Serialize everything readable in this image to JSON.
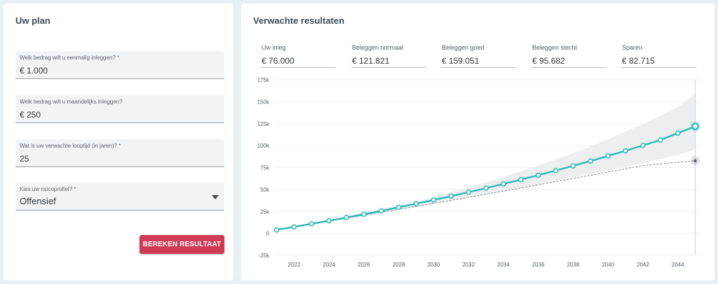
{
  "plan": {
    "title": "Uw plan",
    "fields": [
      {
        "label": "Welk bedrag wilt u eenmalig inleggen? *",
        "value": "€ 1.000"
      },
      {
        "label": "Welk bedrag wilt u maandelijks inleggen?",
        "value": "€ 250"
      },
      {
        "label": "Wat is uw verwachte looptijd (in jaren)? *",
        "value": "25"
      },
      {
        "label": "Kies uw risicoprofiel? *",
        "value": "Offensief"
      }
    ],
    "button_label": "BEREKEN RESULTAAT"
  },
  "results": {
    "title": "Verwachte resultaten",
    "stats": [
      {
        "label": "Uw inleg",
        "value": "€ 76.000"
      },
      {
        "label": "Beleggen normaal",
        "value": "€ 121.821"
      },
      {
        "label": "Beleggen goed",
        "value": "€ 159.051"
      },
      {
        "label": "Beleggen slecht",
        "value": "€ 95.682"
      },
      {
        "label": "Sparen",
        "value": "€ 82.715"
      }
    ]
  },
  "colors": {
    "accent": "#2bb9b4",
    "button": "#d13a55",
    "band": "#ebedef",
    "savings_line": "#8a9095"
  },
  "chart_data": {
    "type": "line",
    "x_ticks": [
      2022,
      2024,
      2026,
      2028,
      2030,
      2032,
      2034,
      2036,
      2038,
      2040,
      2042,
      2044
    ],
    "y_ticks": [
      -25000,
      0,
      25000,
      50000,
      75000,
      100000,
      125000,
      150000,
      175000
    ],
    "y_tick_labels": [
      "-25k",
      "0",
      "25k",
      "50k",
      "75k",
      "100k",
      "125k",
      "150k",
      "175k"
    ],
    "xlim": [
      2020.9,
      2045.3
    ],
    "ylim": [
      -25000,
      175000
    ],
    "grid": true,
    "x": [
      2021,
      2022,
      2023,
      2024,
      2025,
      2026,
      2027,
      2028,
      2029,
      2030,
      2031,
      2032,
      2033,
      2034,
      2035,
      2036,
      2037,
      2038,
      2039,
      2040,
      2041,
      2042,
      2043,
      2044,
      2045
    ],
    "series": [
      {
        "values": [
          4000,
          7400,
          10900,
          14400,
          18100,
          21800,
          25700,
          29700,
          33800,
          38000,
          42400,
          46900,
          51500,
          56300,
          61200,
          66300,
          71500,
          76900,
          82400,
          88200,
          94000,
          100200,
          106400,
          114200,
          121821
        ]
      },
      {
        "values": [
          4000,
          7300,
          10600,
          13900,
          17200,
          20500,
          23900,
          27300,
          30700,
          34100,
          37600,
          41100,
          44600,
          48100,
          51700,
          55300,
          58900,
          62500,
          66200,
          69900,
          73600,
          77300,
          79100,
          81000,
          82715
        ]
      }
    ],
    "band": {
      "upper": [
        4000,
        7600,
        11300,
        15100,
        19100,
        23200,
        27500,
        32100,
        36800,
        41800,
        47000,
        52500,
        58300,
        64300,
        70600,
        77200,
        84200,
        91500,
        99200,
        107300,
        115800,
        124700,
        134100,
        144000,
        159051
      ],
      "lower": [
        4000,
        7100,
        10300,
        13400,
        16600,
        19900,
        23200,
        26600,
        30000,
        33500,
        37000,
        40600,
        44200,
        47900,
        51700,
        55500,
        59400,
        63400,
        67500,
        71600,
        75900,
        80200,
        84700,
        89200,
        95682
      ]
    }
  }
}
